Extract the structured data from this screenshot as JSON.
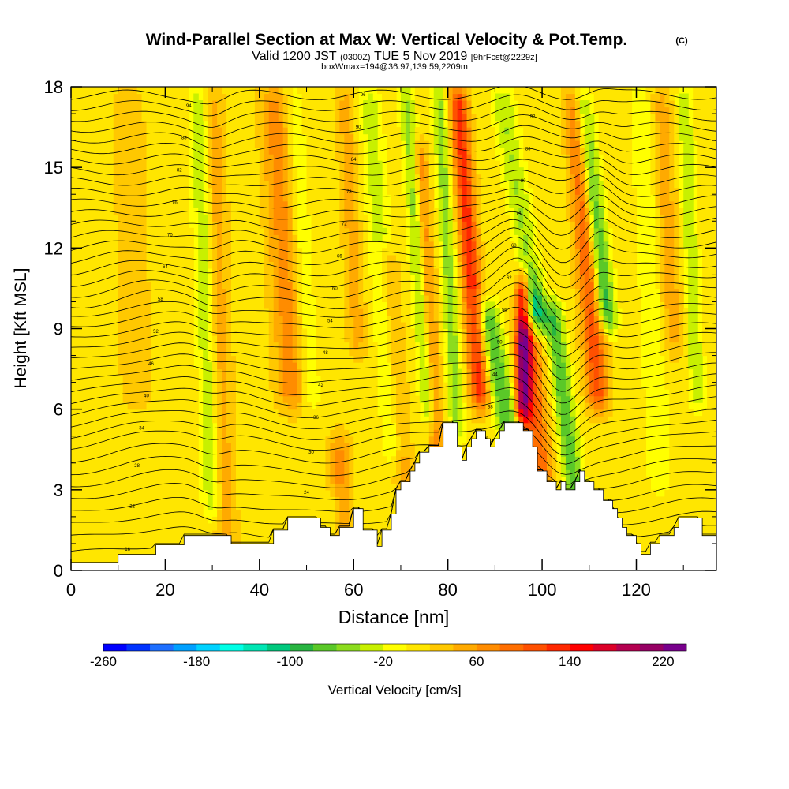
{
  "chart_data": {
    "type": "heatmap",
    "title": "Wind-Parallel Section at Max W: Vertical Velocity & Pot.Temp.",
    "title_mark": "(C)",
    "subtitle": {
      "valid_a": "Valid 1200 JST",
      "utc": "(0300Z)",
      "valid_b": "TUE 5 Nov 2019",
      "fcst": "[9hrFcst@2229z]",
      "box": "boxWmax=194@36.97,139.59,2209m"
    },
    "xlabel": "Distance [nm]",
    "ylabel": "Height [Kft MSL]",
    "xlim": [
      0,
      137
    ],
    "ylim": [
      0,
      18
    ],
    "x_ticks": [
      "0",
      "20",
      "40",
      "60",
      "80",
      "100",
      "120"
    ],
    "x_tick_values": [
      0,
      20,
      40,
      60,
      80,
      100,
      120
    ],
    "y_ticks": [
      "0",
      "3",
      "6",
      "9",
      "12",
      "15",
      "18"
    ],
    "y_tick_values": [
      0,
      3,
      6,
      9,
      12,
      15,
      18
    ],
    "grid": false,
    "background_velocity_cms": 10,
    "velocity_bands": [
      {
        "x": 14,
        "w": 5,
        "peak": 20,
        "y0": 6,
        "y1": 18,
        "lean": -2
      },
      {
        "x": 30,
        "w": 2.5,
        "peak": -50,
        "y0": 2,
        "y1": 18,
        "lean": -3
      },
      {
        "x": 33,
        "w": 3,
        "peak": 40,
        "y0": 0.5,
        "y1": 18,
        "lean": -3
      },
      {
        "x": 47,
        "w": 4,
        "peak": 60,
        "y0": 6,
        "y1": 18,
        "lean": -4
      },
      {
        "x": 51,
        "w": 2.5,
        "peak": -30,
        "y0": 6,
        "y1": 18,
        "lean": -4
      },
      {
        "x": 57,
        "w": 3,
        "peak": 60,
        "y0": 0.5,
        "y1": 5,
        "lean": 0
      },
      {
        "x": 56,
        "w": 2.5,
        "peak": -40,
        "y0": 0.5,
        "y1": 3,
        "lean": 0
      },
      {
        "x": 61,
        "w": 2.5,
        "peak": 40,
        "y0": 8,
        "y1": 18,
        "lean": -3
      },
      {
        "x": 69,
        "w": 3,
        "peak": -40,
        "y0": 4,
        "y1": 18,
        "lean": -6
      },
      {
        "x": 71,
        "w": 2.5,
        "peak": 50,
        "y0": 3,
        "y1": 12,
        "lean": -4
      },
      {
        "x": 76,
        "w": 2,
        "peak": -60,
        "y0": 5.5,
        "y1": 18,
        "lean": -5
      },
      {
        "x": 78,
        "w": 2,
        "peak": 60,
        "y0": 4,
        "y1": 16,
        "lean": -4
      },
      {
        "x": 82,
        "w": 2,
        "peak": -60,
        "y0": 5,
        "y1": 18,
        "lean": -4
      },
      {
        "x": 87,
        "w": 2.5,
        "peak": 120,
        "y0": 6,
        "y1": 18,
        "lean": -5
      },
      {
        "x": 93,
        "w": 3,
        "peak": -90,
        "y0": 5,
        "y1": 10,
        "lean": -5
      },
      {
        "x": 96,
        "w": 2,
        "peak": 180,
        "y0": 5.5,
        "y1": 11,
        "lean": 0
      },
      {
        "x": 99,
        "w": 3,
        "peak": -130,
        "y0": 9,
        "y1": 18,
        "lean": -8
      },
      {
        "x": 97,
        "w": 3,
        "peak": 80,
        "y0": 11,
        "y1": 18,
        "lean": -6
      },
      {
        "x": 100,
        "w": 3,
        "peak": 90,
        "y0": 3,
        "y1": 9,
        "lean": -3
      },
      {
        "x": 108,
        "w": 2.5,
        "peak": -90,
        "y0": 1.5,
        "y1": 10,
        "lean": -6
      },
      {
        "x": 112,
        "w": 3,
        "peak": 100,
        "y0": 6,
        "y1": 18,
        "lean": -5
      },
      {
        "x": 114,
        "w": 2.5,
        "peak": -110,
        "y0": 9,
        "y1": 18,
        "lean": -6
      },
      {
        "x": 125,
        "w": 3,
        "peak": -30,
        "y0": 3,
        "y1": 18,
        "lean": -4
      },
      {
        "x": 128,
        "w": 3,
        "peak": 40,
        "y0": 8,
        "y1": 18,
        "lean": -3
      },
      {
        "x": 133,
        "w": 2,
        "peak": -50,
        "y0": 6,
        "y1": 18,
        "lean": -3
      },
      {
        "x": 10,
        "w": 6,
        "peak": -5,
        "y0": 0.5,
        "y1": 3,
        "lean": 0
      }
    ],
    "terrain_kft": [
      [
        0,
        0.3
      ],
      [
        10,
        0.3
      ],
      [
        10,
        0.6
      ],
      [
        18,
        0.6
      ],
      [
        18,
        0.95
      ],
      [
        24,
        0.95
      ],
      [
        24,
        1.3
      ],
      [
        34,
        1.3
      ],
      [
        34,
        1.0
      ],
      [
        43,
        1.0
      ],
      [
        43,
        1.5
      ],
      [
        46,
        1.5
      ],
      [
        46,
        1.95
      ],
      [
        53,
        1.95
      ],
      [
        53,
        1.6
      ],
      [
        55,
        1.6
      ],
      [
        55,
        1.3
      ],
      [
        57,
        1.3
      ],
      [
        57,
        1.6
      ],
      [
        60,
        1.6
      ],
      [
        60,
        2.3
      ],
      [
        62,
        2.3
      ],
      [
        62,
        1.5
      ],
      [
        65,
        1.5
      ],
      [
        65,
        0.9
      ],
      [
        66,
        0.9
      ],
      [
        66,
        1.5
      ],
      [
        68,
        1.5
      ],
      [
        68,
        2.1
      ],
      [
        69,
        2.1
      ],
      [
        69,
        3.0
      ],
      [
        70,
        3.0
      ],
      [
        70,
        3.3
      ],
      [
        72,
        3.3
      ],
      [
        72,
        3.7
      ],
      [
        73,
        3.7
      ],
      [
        73,
        4.0
      ],
      [
        74,
        4.0
      ],
      [
        74,
        4.4
      ],
      [
        76,
        4.4
      ],
      [
        76,
        4.6
      ],
      [
        79,
        4.6
      ],
      [
        79,
        5.5
      ],
      [
        82,
        5.5
      ],
      [
        82,
        4.6
      ],
      [
        83,
        4.6
      ],
      [
        83,
        4.1
      ],
      [
        84,
        4.1
      ],
      [
        84,
        4.6
      ],
      [
        85,
        4.6
      ],
      [
        85,
        4.9
      ],
      [
        86,
        4.9
      ],
      [
        86,
        5.2
      ],
      [
        88,
        5.2
      ],
      [
        88,
        4.9
      ],
      [
        89,
        4.9
      ],
      [
        89,
        4.6
      ],
      [
        90,
        4.6
      ],
      [
        90,
        4.9
      ],
      [
        91,
        4.9
      ],
      [
        91,
        5.2
      ],
      [
        92,
        5.2
      ],
      [
        92,
        5.5
      ],
      [
        96,
        5.5
      ],
      [
        96,
        5.2
      ],
      [
        98,
        5.2
      ],
      [
        98,
        4.6
      ],
      [
        99,
        4.6
      ],
      [
        99,
        3.7
      ],
      [
        101,
        3.7
      ],
      [
        101,
        3.3
      ],
      [
        103,
        3.3
      ],
      [
        103,
        3.0
      ],
      [
        104,
        3.0
      ],
      [
        104,
        3.3
      ],
      [
        105,
        3.3
      ],
      [
        105,
        3.0
      ],
      [
        107,
        3.0
      ],
      [
        107,
        3.3
      ],
      [
        108,
        3.3
      ],
      [
        108,
        3.7
      ],
      [
        109,
        3.7
      ],
      [
        109,
        3.3
      ],
      [
        111,
        3.3
      ],
      [
        111,
        3.0
      ],
      [
        113,
        3.0
      ],
      [
        113,
        2.6
      ],
      [
        115,
        2.6
      ],
      [
        115,
        2.3
      ],
      [
        116,
        2.3
      ],
      [
        116,
        1.95
      ],
      [
        117,
        1.95
      ],
      [
        117,
        1.6
      ],
      [
        118,
        1.6
      ],
      [
        118,
        1.3
      ],
      [
        120,
        1.3
      ],
      [
        120,
        1.0
      ],
      [
        121,
        1.0
      ],
      [
        121,
        0.6
      ],
      [
        123,
        0.6
      ],
      [
        123,
        1.0
      ],
      [
        125,
        1.0
      ],
      [
        125,
        1.3
      ],
      [
        128,
        1.3
      ],
      [
        128,
        1.6
      ],
      [
        129,
        1.6
      ],
      [
        129,
        1.95
      ],
      [
        134,
        1.95
      ],
      [
        134,
        1.3
      ],
      [
        137,
        1.3
      ]
    ],
    "theta_contours": {
      "levels_kft": [
        0.8,
        1.4,
        1.9,
        2.4,
        2.9,
        3.4,
        3.9,
        4.4,
        4.9,
        5.3,
        5.7,
        6.1,
        6.5,
        6.9,
        7.3,
        7.7,
        8.1,
        8.5,
        8.9,
        9.3,
        9.7,
        10.1,
        10.5,
        10.9,
        11.3,
        11.7,
        12.1,
        12.5,
        12.9,
        13.3,
        13.7,
        14.1,
        14.5,
        14.9,
        15.3,
        15.7,
        16.1,
        16.5,
        16.9,
        17.3,
        17.7
      ],
      "labels": [
        "16",
        "18",
        "20",
        "22",
        "24",
        "26",
        "28",
        "30",
        "32",
        "34",
        "36",
        "38",
        "40",
        "42",
        "44",
        "46",
        "48",
        "50",
        "52",
        "54",
        "56",
        "58",
        "60",
        "62",
        "64",
        "66",
        "68",
        "70",
        "72",
        "74",
        "76",
        "78",
        "80",
        "82",
        "84",
        "86",
        "88",
        "90",
        "92",
        "94",
        "96"
      ]
    },
    "colorbar": {
      "label": "Vertical Velocity [cm/s]",
      "tick_labels": [
        "-260",
        "-180",
        "-100",
        "-20",
        "60",
        "140",
        "220"
      ],
      "tick_values": [
        -260,
        -180,
        -100,
        -20,
        60,
        140,
        220
      ],
      "bin_edges": [
        -260,
        -240,
        -220,
        -200,
        -180,
        -160,
        -140,
        -120,
        -100,
        -80,
        -60,
        -40,
        -20,
        0,
        20,
        40,
        60,
        80,
        100,
        120,
        140,
        160,
        180,
        200,
        220,
        240
      ],
      "colors": [
        "#0000ff",
        "#0033ff",
        "#1e6fff",
        "#00a0ff",
        "#00d2ff",
        "#00ffe6",
        "#00e6b4",
        "#00c87d",
        "#28b441",
        "#5ac828",
        "#8cdc1e",
        "#c8f000",
        "#ffff00",
        "#ffe600",
        "#ffc800",
        "#ffaa00",
        "#ff8c00",
        "#ff6e00",
        "#ff5000",
        "#ff2800",
        "#ff0000",
        "#dc0028",
        "#b40050",
        "#960064",
        "#78008c"
      ]
    }
  }
}
